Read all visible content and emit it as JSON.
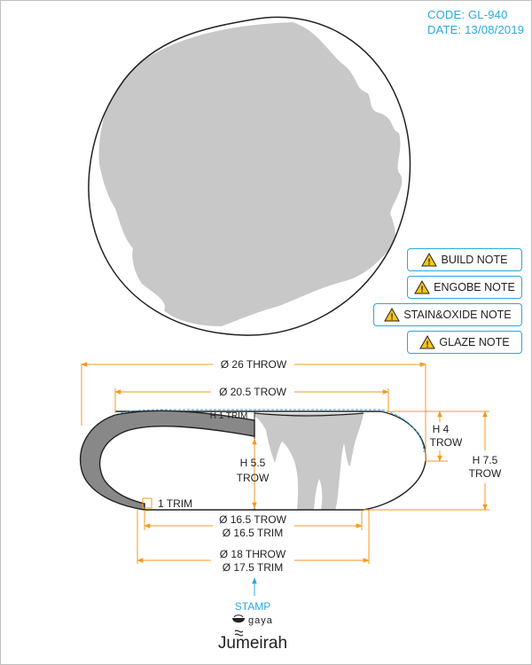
{
  "header": {
    "code": "CODE: GL-940",
    "date": "DATE: 13/08/2019"
  },
  "notes": [
    {
      "label": "BUILD NOTE"
    },
    {
      "label": "ENGOBE NOTE"
    },
    {
      "label": "STAIN&OXIDE NOTE"
    },
    {
      "label": "GLAZE NOTE"
    }
  ],
  "dimensions": {
    "d_top_outer": "Ø 26 THROW",
    "d_top_inner": "Ø 20.5 TROW",
    "h_trim_top": "H 1 TRIM",
    "h_inner_1": "H 5.5",
    "h_inner_2": "TROW",
    "h4_1": "H 4",
    "h4_2": "TROW",
    "h75_1": "H 7.5",
    "h75_2": "TROW",
    "trim_side": "1 TRIM",
    "d_base_1": "Ø 16.5 TROW",
    "d_base_2": "Ø 16.5 TRIM",
    "d_foot_1": "Ø 18 THROW",
    "d_foot_2": "Ø 17.5 TRIM"
  },
  "stamp": {
    "label": "STAMP",
    "brand_small": "gaya",
    "brand_main": "Jumeirah"
  },
  "colors": {
    "accent": "#29a8df",
    "dimension": "#f39a1e",
    "glaze": "#c8c8c8",
    "outline": "#222222",
    "warning": "#f5c518"
  }
}
